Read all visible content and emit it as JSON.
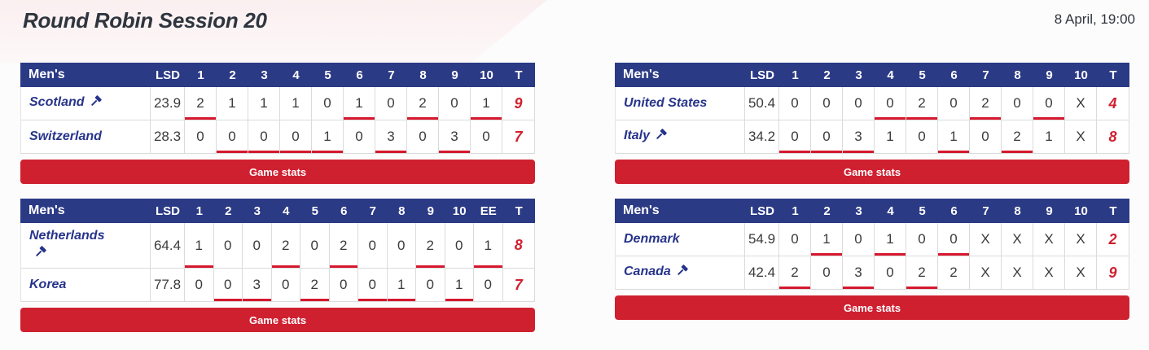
{
  "header": {
    "title": "Round Robin Session 20",
    "datetime": "8 April, 19:00"
  },
  "game_stats_label": "Game stats",
  "colors": {
    "header_navy": "#2b3a85",
    "team_blue": "#27348b",
    "accent_red": "#cf2030",
    "underline_red": "#d6182e"
  },
  "games": [
    {
      "category": "Men's",
      "lsd_label": "LSD",
      "total_label": "T",
      "end_labels": [
        "1",
        "2",
        "3",
        "4",
        "5",
        "6",
        "7",
        "8",
        "9",
        "10"
      ],
      "teams": [
        {
          "name": "Scotland",
          "has_hammer_icon": true,
          "hammer_on_new_line": false,
          "lsd": "23.9",
          "scores": [
            "2",
            "1",
            "1",
            "1",
            "0",
            "1",
            "0",
            "2",
            "0",
            "1"
          ],
          "total": "9",
          "underlined_ends": [
            1,
            6,
            8,
            10
          ]
        },
        {
          "name": "Switzerland",
          "has_hammer_icon": false,
          "hammer_on_new_line": false,
          "lsd": "28.3",
          "scores": [
            "0",
            "0",
            "0",
            "0",
            "1",
            "0",
            "3",
            "0",
            "3",
            "0"
          ],
          "total": "7",
          "underlined_ends": [
            2,
            3,
            4,
            5,
            7,
            9
          ]
        }
      ]
    },
    {
      "category": "Men's",
      "lsd_label": "LSD",
      "total_label": "T",
      "end_labels": [
        "1",
        "2",
        "3",
        "4",
        "5",
        "6",
        "7",
        "8",
        "9",
        "10"
      ],
      "teams": [
        {
          "name": "United States",
          "has_hammer_icon": false,
          "hammer_on_new_line": false,
          "lsd": "50.4",
          "scores": [
            "0",
            "0",
            "0",
            "0",
            "2",
            "0",
            "2",
            "0",
            "0",
            "X"
          ],
          "total": "4",
          "underlined_ends": [
            4,
            5,
            7,
            9
          ]
        },
        {
          "name": "Italy",
          "has_hammer_icon": true,
          "hammer_on_new_line": false,
          "lsd": "34.2",
          "scores": [
            "0",
            "0",
            "3",
            "1",
            "0",
            "1",
            "0",
            "2",
            "1",
            "X"
          ],
          "total": "8",
          "underlined_ends": [
            1,
            2,
            3,
            6,
            8
          ]
        }
      ]
    },
    {
      "category": "Men's",
      "lsd_label": "LSD",
      "total_label": "T",
      "end_labels": [
        "1",
        "2",
        "3",
        "4",
        "5",
        "6",
        "7",
        "8",
        "9",
        "10",
        "EE"
      ],
      "teams": [
        {
          "name": "Netherlands",
          "has_hammer_icon": true,
          "hammer_on_new_line": true,
          "lsd": "64.4",
          "scores": [
            "1",
            "0",
            "0",
            "2",
            "0",
            "2",
            "0",
            "0",
            "2",
            "0",
            "1"
          ],
          "total": "8",
          "underlined_ends": [
            1,
            4,
            6,
            9,
            11
          ]
        },
        {
          "name": "Korea",
          "has_hammer_icon": false,
          "hammer_on_new_line": false,
          "lsd": "77.8",
          "scores": [
            "0",
            "0",
            "3",
            "0",
            "2",
            "0",
            "0",
            "1",
            "0",
            "1",
            "0"
          ],
          "total": "7",
          "underlined_ends": [
            2,
            3,
            5,
            7,
            8,
            10
          ]
        }
      ]
    },
    {
      "category": "Men's",
      "lsd_label": "LSD",
      "total_label": "T",
      "end_labels": [
        "1",
        "2",
        "3",
        "4",
        "5",
        "6",
        "7",
        "8",
        "9",
        "10"
      ],
      "teams": [
        {
          "name": "Denmark",
          "has_hammer_icon": false,
          "hammer_on_new_line": false,
          "lsd": "54.9",
          "scores": [
            "0",
            "1",
            "0",
            "1",
            "0",
            "0",
            "X",
            "X",
            "X",
            "X"
          ],
          "total": "2",
          "underlined_ends": [
            2,
            4,
            6
          ]
        },
        {
          "name": "Canada",
          "has_hammer_icon": true,
          "hammer_on_new_line": false,
          "lsd": "42.4",
          "scores": [
            "2",
            "0",
            "3",
            "0",
            "2",
            "2",
            "X",
            "X",
            "X",
            "X"
          ],
          "total": "9",
          "underlined_ends": [
            1,
            3,
            5
          ]
        }
      ]
    }
  ]
}
